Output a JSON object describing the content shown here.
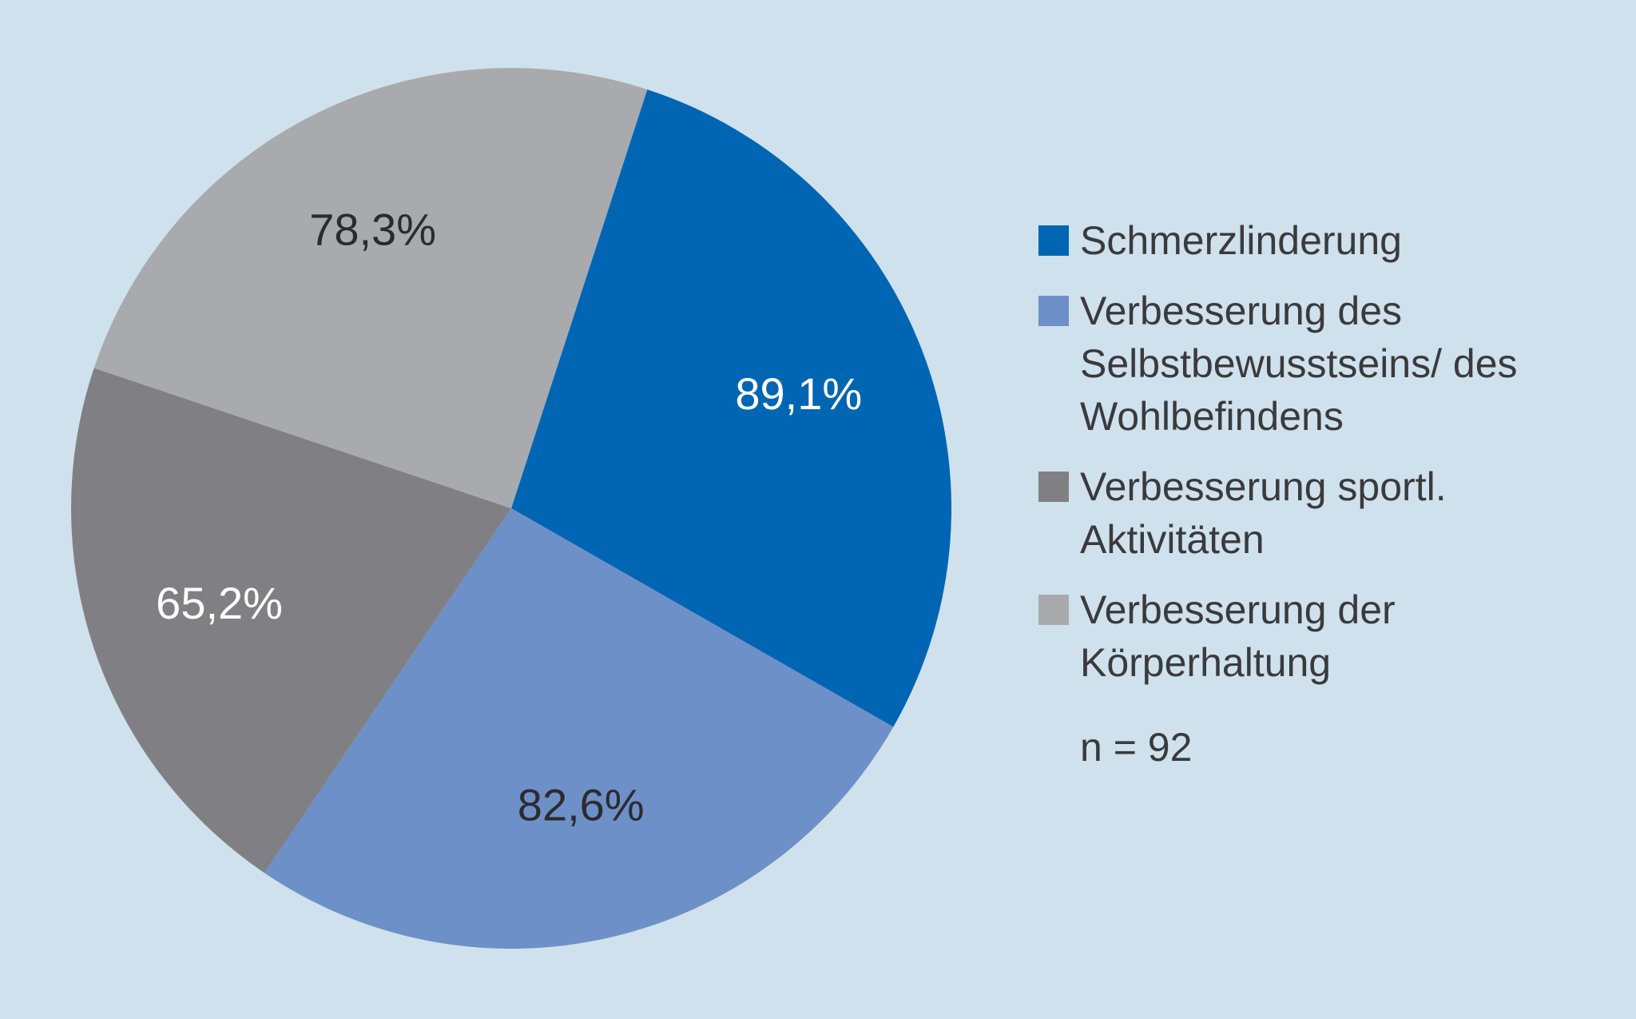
{
  "chart_data": {
    "type": "pie",
    "categories": [
      "Schmerzlinderung",
      "Verbesserung des Selbstbewusstseins/ des Wohlbefindens",
      "Verbesserung sportl. Aktivitäten",
      "Verbesserung der Körperhaltung"
    ],
    "values": [
      89.1,
      82.6,
      65.2,
      78.3
    ],
    "value_labels": [
      "89,1%",
      "82,6%",
      "65,2%",
      "78,3%"
    ],
    "colors": [
      "#0066b3",
      "#6d90c8",
      "#808084",
      "#a9aaae"
    ],
    "label_colors": [
      "#ffffff",
      "#2b2b2e",
      "#ffffff",
      "#2b2b2e"
    ],
    "note": "n = 92"
  }
}
